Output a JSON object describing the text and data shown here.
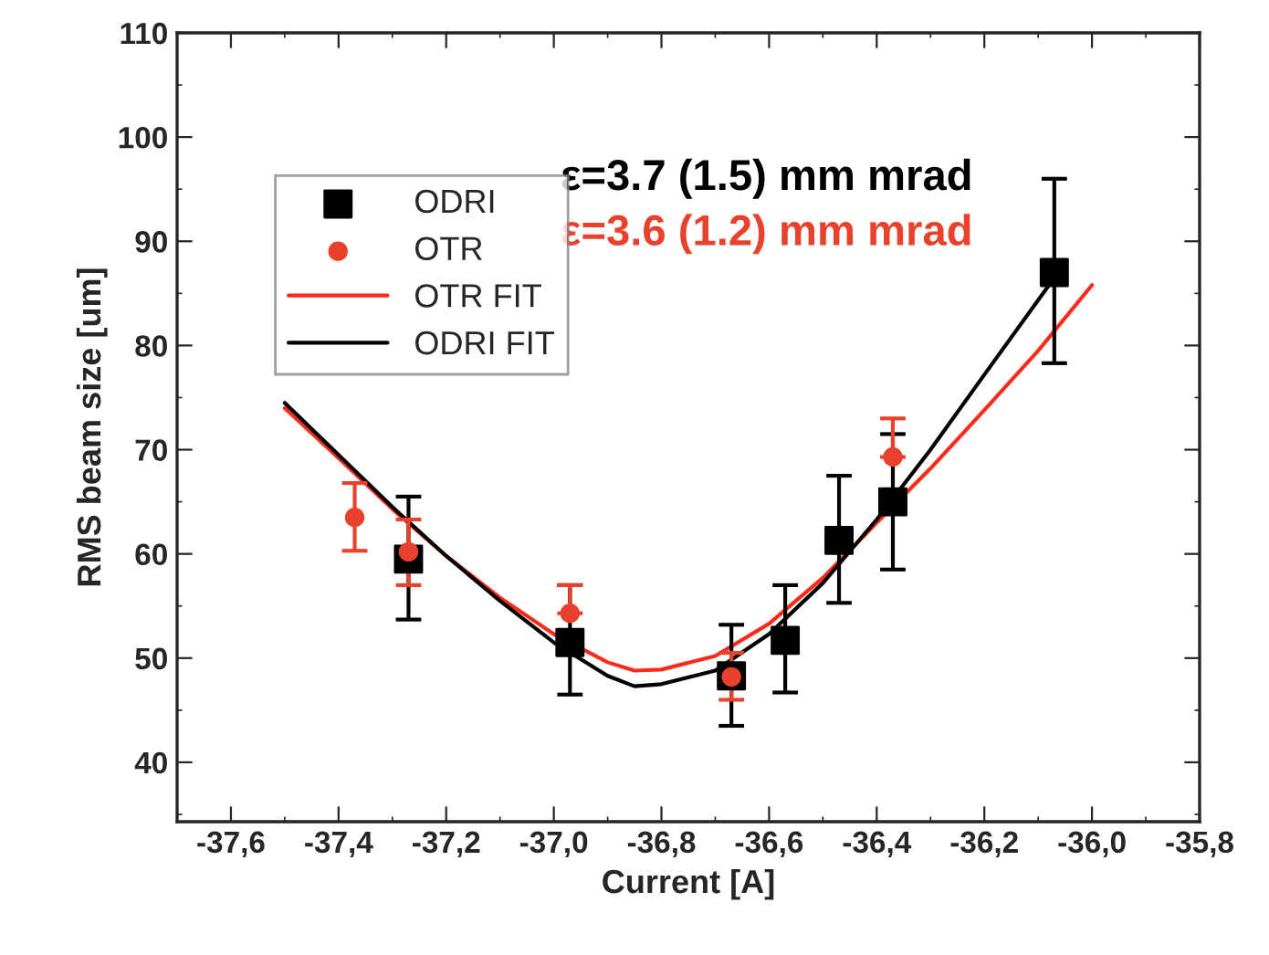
{
  "chart_data": {
    "type": "scatter",
    "xlabel": "Current [A]",
    "ylabel": "RMS beam size [um]",
    "xlim": [
      -37.7,
      -35.8
    ],
    "ylim": [
      34.3,
      110
    ],
    "xticks": [
      {
        "value": -37.6,
        "label": "-37,6"
      },
      {
        "value": -37.4,
        "label": "-37,4"
      },
      {
        "value": -37.2,
        "label": "-37,2"
      },
      {
        "value": -37.0,
        "label": "-37,0"
      },
      {
        "value": -36.8,
        "label": "-36,8"
      },
      {
        "value": -36.6,
        "label": "-36,6"
      },
      {
        "value": -36.4,
        "label": "-36,4"
      },
      {
        "value": -36.2,
        "label": "-36,2"
      },
      {
        "value": -36.0,
        "label": "-36,0"
      },
      {
        "value": -35.8,
        "label": "-35,8"
      }
    ],
    "yticks": [
      40,
      50,
      60,
      70,
      80,
      90,
      100,
      110
    ],
    "grid": false,
    "legend": "top left",
    "annotations": [
      "ε=3.7 (1.5) mm mrad",
      "ε=3.6 (1.2) mm mrad"
    ],
    "series": [
      {
        "name": "ODRI",
        "marker": "square",
        "color": "#000000",
        "x": [
          -37.27,
          -36.97,
          -36.67,
          -36.57,
          -36.47,
          -36.37,
          -36.07
        ],
        "values": [
          59.5,
          51.5,
          48.3,
          51.7,
          61.3,
          65,
          87
        ],
        "errors": [
          [
            53.7,
            65.5
          ],
          [
            46.5,
            57
          ],
          [
            43.5,
            53.2
          ],
          [
            46.7,
            57
          ],
          [
            55.3,
            67.5
          ],
          [
            58.5,
            71.5
          ],
          [
            78.3,
            96
          ]
        ]
      },
      {
        "name": "OTR",
        "marker": "circle",
        "color": "#e8412c",
        "x": [
          -37.37,
          -37.27,
          -36.97,
          -36.67,
          -36.37
        ],
        "values": [
          63.5,
          60.2,
          54.3,
          48.2,
          69.3
        ],
        "errors": [
          [
            60.3,
            66.8
          ],
          [
            57,
            63.3
          ],
          [
            54.3,
            57
          ],
          [
            46,
            50.5
          ],
          [
            69.3,
            73
          ]
        ]
      },
      {
        "name": "OTR FIT",
        "type": "line",
        "color": "#ff2a1a",
        "x": [
          -37.5,
          -37.4,
          -37.3,
          -37.2,
          -37.1,
          -37.0,
          -36.9,
          -36.85,
          -36.8,
          -36.7,
          -36.6,
          -36.5,
          -36.4,
          -36.3,
          -36.2,
          -36.1,
          -36.0
        ],
        "values": [
          74,
          69.2,
          64.3,
          59.8,
          55.8,
          52.3,
          49.6,
          48.8,
          48.9,
          50.2,
          53.3,
          57.7,
          63,
          68.2,
          73.8,
          79.5,
          85.8
        ]
      },
      {
        "name": "ODRI FIT",
        "type": "line",
        "color": "#000000",
        "x": [
          -37.5,
          -37.4,
          -37.3,
          -37.2,
          -37.1,
          -37.0,
          -36.9,
          -36.85,
          -36.8,
          -36.7,
          -36.6,
          -36.5,
          -36.4,
          -36.3,
          -36.2,
          -36.07
        ],
        "values": [
          74.5,
          69.5,
          64.5,
          59.8,
          55.5,
          51.5,
          48.3,
          47.3,
          47.5,
          48.8,
          52.3,
          57.2,
          63.3,
          70,
          77.2,
          86.5
        ]
      }
    ]
  }
}
